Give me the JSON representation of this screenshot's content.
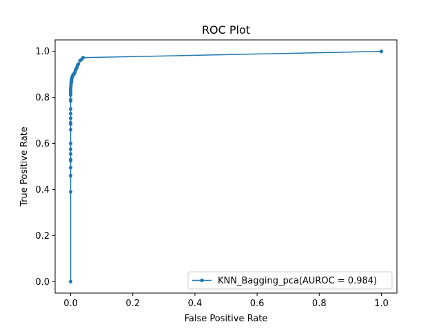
{
  "chart_data": {
    "type": "line",
    "title": "ROC Plot",
    "xlabel": "False Positive Rate",
    "ylabel": "True Positive Rate",
    "xlim": [
      -0.05,
      1.05
    ],
    "ylim": [
      -0.05,
      1.05
    ],
    "xticks": [
      0.0,
      0.2,
      0.4,
      0.6,
      0.8,
      1.0
    ],
    "xtick_labels": [
      "0.0",
      "0.2",
      "0.4",
      "0.6",
      "0.8",
      "1.0"
    ],
    "yticks": [
      0.0,
      0.2,
      0.4,
      0.6,
      0.8,
      1.0
    ],
    "ytick_labels": [
      "0.0",
      "0.2",
      "0.4",
      "0.6",
      "0.8",
      "1.0"
    ],
    "grid": false,
    "legend": {
      "position": "lower-right"
    },
    "series": [
      {
        "name": "KNN_Bagging_pca(AUROC = 0.984)",
        "color": "#1f77b4",
        "marker": "circle",
        "x": [
          0.0,
          0.0,
          0.0,
          0.0,
          0.0,
          0.0,
          0.0,
          0.0,
          0.0,
          0.0,
          0.0,
          0.0,
          0.0,
          0.0,
          0.0,
          0.0,
          0.0,
          0.0,
          0.0,
          0.0,
          0.0,
          0.0,
          0.001,
          0.001,
          0.002,
          0.002,
          0.003,
          0.003,
          0.004,
          0.005,
          0.006,
          0.007,
          0.008,
          0.01,
          0.012,
          0.014,
          0.016,
          0.018,
          0.02,
          0.022,
          0.025,
          0.03,
          0.035,
          0.04,
          1.0
        ],
        "y": [
          0.0,
          0.39,
          0.46,
          0.495,
          0.525,
          0.53,
          0.555,
          0.575,
          0.6,
          0.66,
          0.685,
          0.69,
          0.71,
          0.73,
          0.75,
          0.785,
          0.79,
          0.81,
          0.82,
          0.83,
          0.835,
          0.84,
          0.85,
          0.86,
          0.865,
          0.87,
          0.875,
          0.88,
          0.885,
          0.89,
          0.89,
          0.895,
          0.9,
          0.9,
          0.905,
          0.91,
          0.92,
          0.925,
          0.93,
          0.94,
          0.945,
          0.96,
          0.965,
          0.973,
          1.0
        ]
      }
    ]
  }
}
